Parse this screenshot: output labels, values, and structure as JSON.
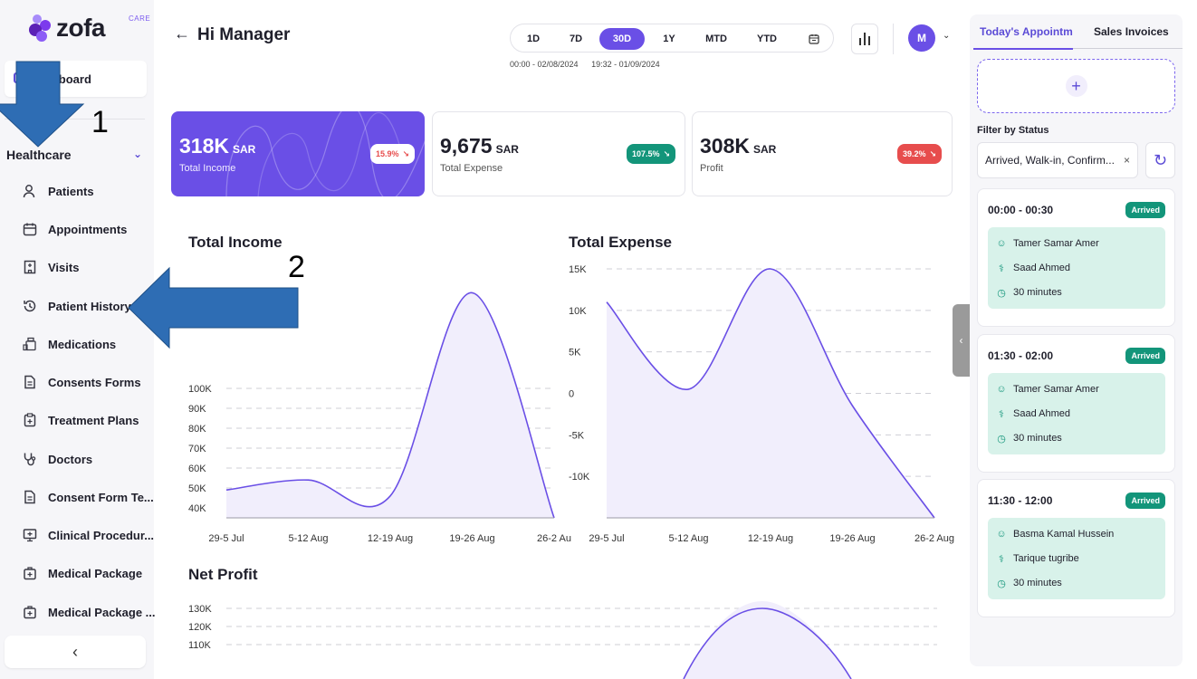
{
  "brand": {
    "name": "zofa",
    "tag": "CARE"
  },
  "sidebar": {
    "dashboard_label": "Dashboard",
    "section_label": "Healthcare",
    "items": [
      {
        "label": "Patients",
        "icon": "user-icon"
      },
      {
        "label": "Appointments",
        "icon": "calendar-icon"
      },
      {
        "label": "Visits",
        "icon": "hospital-icon"
      },
      {
        "label": "Patient History",
        "icon": "history-icon"
      },
      {
        "label": "Medications",
        "icon": "medications-icon"
      },
      {
        "label": "Consents Forms",
        "icon": "document-icon"
      },
      {
        "label": "Treatment Plans",
        "icon": "clipboard-icon"
      },
      {
        "label": "Doctors",
        "icon": "stethoscope-icon"
      },
      {
        "label": "Consent Form Te...",
        "icon": "document-icon"
      },
      {
        "label": "Clinical Procedur...",
        "icon": "monitor-icon"
      },
      {
        "label": "Medical Package",
        "icon": "medical-bag-icon"
      },
      {
        "label": "Medical Package ...",
        "icon": "medical-bag-icon"
      }
    ],
    "collapse_label": "‹"
  },
  "annotations": {
    "one": "1",
    "two": "2",
    "arrow_color": "#2e6db4"
  },
  "header": {
    "title": "Hi Manager",
    "ranges": [
      "1D",
      "7D",
      "30D",
      "1Y",
      "MTD",
      "YTD"
    ],
    "active_range": "30D",
    "range_start": "00:00 - 02/08/2024",
    "range_end": "19:32 - 01/09/2024",
    "avatar": "M"
  },
  "kpis": [
    {
      "value": "318K",
      "unit": "SAR",
      "caption": "Total Income",
      "change": "15.9%",
      "trend": "down"
    },
    {
      "value": "9,675",
      "unit": "SAR",
      "caption": "Total Expense",
      "change": "107.5%",
      "trend": "down"
    },
    {
      "value": "308K",
      "unit": "SAR",
      "caption": "Profit",
      "change": "39.2%",
      "trend": "down"
    }
  ],
  "chart_data": [
    {
      "type": "area",
      "title": "Total Income",
      "categories": [
        "29-5 Jul",
        "5-12 Aug",
        "12-19 Aug",
        "19-26 Aug",
        "26-2 Au"
      ],
      "y_ticks": [
        "40K",
        "50K",
        "60K",
        "70K",
        "80K",
        "90K",
        "100K"
      ],
      "ylim": [
        35000,
        160000
      ],
      "values": [
        49000,
        54000,
        46000,
        148000,
        34000
      ],
      "grid": true
    },
    {
      "type": "area",
      "title": "Total Expense",
      "categories": [
        "29-5 Jul",
        "5-12 Aug",
        "12-19 Aug",
        "19-26 Aug",
        "26-2 Aug"
      ],
      "y_ticks": [
        "-10K",
        "-5K",
        "0",
        "5K",
        "10K",
        "15K"
      ],
      "ylim": [
        -15000,
        15000
      ],
      "values": [
        11000,
        500,
        15000,
        -1500,
        -15000
      ],
      "grid": true
    },
    {
      "type": "area",
      "title": "Net Profit",
      "y_ticks": [
        "110K",
        "120K",
        "130K"
      ],
      "ylim": [
        100000,
        135000
      ],
      "values": [
        null,
        null,
        130000,
        null,
        null
      ],
      "grid": true
    }
  ],
  "right_panel": {
    "tabs": [
      "Today's Appointm",
      "Sales Invoices"
    ],
    "add_label": "+",
    "filter_label": "Filter by Status",
    "filter_value": "Arrived, Walk-in, Confirm...",
    "clear_label": "×",
    "refresh_label": "↻",
    "appointments": [
      {
        "time": "00:00 - 00:30",
        "status": "Arrived",
        "patient": "Tamer Samar Amer",
        "doctor": "Saad Ahmed",
        "duration": "30 minutes"
      },
      {
        "time": "01:30 - 02:00",
        "status": "Arrived",
        "patient": "Tamer Samar Amer",
        "doctor": "Saad Ahmed",
        "duration": "30 minutes"
      },
      {
        "time": "11:30 - 12:00",
        "status": "Arrived",
        "patient": "Basma Kamal Hussein",
        "doctor": "Tarique tugribe",
        "duration": "30 minutes"
      }
    ],
    "handle_label": "‹"
  },
  "colors": {
    "accent": "#6a4fe6",
    "success": "#13957a",
    "danger": "#e74d4d"
  }
}
